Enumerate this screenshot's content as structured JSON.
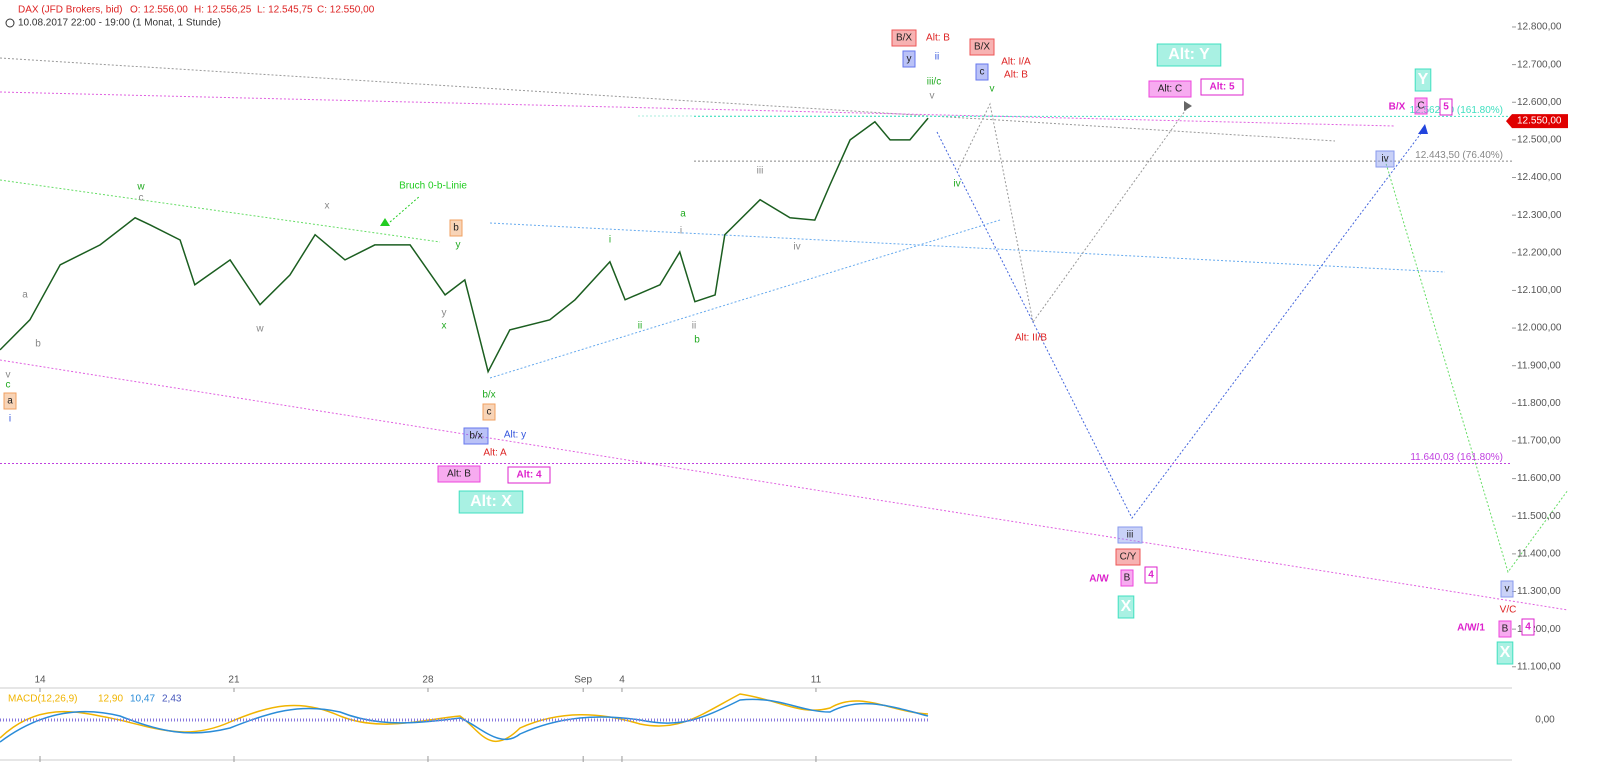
{
  "chart_data": {
    "type": "line",
    "title": "DAX (JFD Brokers, bid)",
    "ohlc": [
      "O: 12.556,00",
      "H: 12.556,25",
      "L: 12.545,75",
      "C: 12.550,00"
    ],
    "subtitle": "10.08.2017 22:00 - 19:00  (1 Monat, 1 Stunde)",
    "x": [
      -1.03,
      -0.26,
      0.52,
      1.55,
      2.45,
      2.84,
      3.61,
      3.99,
      4.9,
      5.67,
      6.44,
      7.09,
      7.86,
      8.63,
      9.54,
      10.44,
      10.95,
      11.08,
      11.55,
      12.11,
      13.14,
      13.79,
      14.69,
      15.08,
      15.98,
      16.49,
      16.88,
      17.4,
      17.65,
      18.56,
      19.33,
      19.97,
      20.36,
      20.88,
      21.52,
      21.91,
      22.42,
      22.89
    ],
    "series": [
      {
        "name": "DAX",
        "color": "#1b5e20",
        "values": [
          11942,
          12022,
          12168,
          12221,
          12293,
          12274,
          12234,
          12115,
          12181,
          12062,
          12141,
          12248,
          12181,
          12221,
          12221,
          12088,
          12128,
          12075,
          11884,
          11995,
          12022,
          12075,
          12176,
          12075,
          12115,
          12202,
          12070,
          12088,
          12248,
          12341,
          12293,
          12287,
          12380,
          12500,
          12548,
          12500,
          12500,
          12558
        ]
      }
    ],
    "xlim": [
      -1.031,
      37.94
    ],
    "xticks": [
      {
        "value": 0,
        "label": "14"
      },
      {
        "value": 5,
        "label": "21"
      },
      {
        "value": 10,
        "label": "28"
      },
      {
        "value": 14,
        "label": "Sep"
      },
      {
        "value": 15,
        "label": "4"
      },
      {
        "value": 20,
        "label": "11"
      }
    ],
    "ylim": [
      11043.6,
      12871.7
    ],
    "yticks": [
      {
        "value": 11100,
        "label": "11.100,00"
      },
      {
        "value": 11200,
        "label": "11.200,00"
      },
      {
        "value": 11300,
        "label": "11.300,00"
      },
      {
        "value": 11400,
        "label": "11.400,00"
      },
      {
        "value": 11500,
        "label": "11.500,00"
      },
      {
        "value": 11600,
        "label": "11.600,00"
      },
      {
        "value": 11700,
        "label": "11.700,00"
      },
      {
        "value": 11800,
        "label": "11.800,00"
      },
      {
        "value": 11900,
        "label": "11.900,00"
      },
      {
        "value": 12000,
        "label": "12.000,00"
      },
      {
        "value": 12100,
        "label": "12.100,00"
      },
      {
        "value": 12200,
        "label": "12.200,00"
      },
      {
        "value": 12300,
        "label": "12.300,00"
      },
      {
        "value": 12400,
        "label": "12.400,00"
      },
      {
        "value": 12500,
        "label": "12.500,00"
      },
      {
        "value": 12600,
        "label": "12.600,00"
      },
      {
        "value": 12700,
        "label": "12.700,00"
      },
      {
        "value": 12800,
        "label": "12.800,00"
      }
    ],
    "last_price": {
      "value": 12550,
      "label": "12.550,00"
    },
    "levels": [
      {
        "value": 12443.5,
        "label": "12.443,50 (76.40%)",
        "color": "#888888"
      },
      {
        "value": 11640.03,
        "label": "11.640,03 (161.80%)",
        "color": "#c040e0"
      },
      {
        "value": 12562.5,
        "label": "12.562,50 (161.80%)",
        "color": "#40e0c0"
      }
    ],
    "macd": {
      "label": "MACD(12,26,9)",
      "values": [
        "12,90",
        "10,47",
        "2,43"
      ],
      "zero": "0,00"
    },
    "annotations": [
      {
        "text": "Bruch 0-b-Linie",
        "color": "#22cc22"
      },
      {
        "text": "w",
        "color": "#22aa22"
      },
      {
        "text": "c",
        "color": "#888888"
      },
      {
        "text": "x",
        "color": "#888888"
      },
      {
        "text": "w",
        "color": "#888888"
      },
      {
        "text": "a",
        "color": "#888888"
      },
      {
        "text": "b",
        "color": "#888888"
      },
      {
        "text": "v",
        "color": "#888888"
      },
      {
        "text": "c",
        "color": "#22aa22"
      },
      {
        "text": "a",
        "color": "#f0a060"
      },
      {
        "text": "i",
        "color": "#3355dd"
      },
      {
        "text": "b",
        "color": "#f0a060"
      },
      {
        "text": "y",
        "color": "#22aa22"
      },
      {
        "text": "y",
        "color": "#888888"
      },
      {
        "text": "x",
        "color": "#22aa22"
      },
      {
        "text": "b/x",
        "color": "#22aa22"
      },
      {
        "text": "c",
        "color": "#f0a060"
      },
      {
        "text": "b/x",
        "color": "#6677ee"
      },
      {
        "text": "Alt: y",
        "color": "#3355dd"
      },
      {
        "text": "Alt: A",
        "color": "#dd2222"
      },
      {
        "text": "Alt: B",
        "color": "#ee44dd"
      },
      {
        "text": "Alt: 4",
        "color": "#dd22cc"
      },
      {
        "text": "Alt: X",
        "color": "#40e0c0"
      },
      {
        "text": "i",
        "color": "#22aa22"
      },
      {
        "text": "ii",
        "color": "#22aa22"
      },
      {
        "text": "a",
        "color": "#22aa22"
      },
      {
        "text": "i",
        "color": "#888888"
      },
      {
        "text": "ii",
        "color": "#888888"
      },
      {
        "text": "b",
        "color": "#22aa22"
      },
      {
        "text": "iii",
        "color": "#888888"
      },
      {
        "text": "iv",
        "color": "#888888"
      },
      {
        "text": "B/X",
        "color": "#ee5555"
      },
      {
        "text": "y",
        "color": "#6677ee"
      },
      {
        "text": "Alt: B",
        "color": "#dd2222"
      },
      {
        "text": "ii",
        "color": "#3355dd"
      },
      {
        "text": "iii/c",
        "color": "#22aa22"
      },
      {
        "text": "v",
        "color": "#888888"
      },
      {
        "text": "iv",
        "color": "#22aa22"
      },
      {
        "text": "B/X",
        "color": "#ee5555"
      },
      {
        "text": "c",
        "color": "#6677ee"
      },
      {
        "text": "Alt: I/A",
        "color": "#dd2222"
      },
      {
        "text": "Alt: B",
        "color": "#dd2222"
      },
      {
        "text": "v",
        "color": "#22aa22"
      },
      {
        "text": "Alt: II/B",
        "color": "#dd2222"
      },
      {
        "text": "Alt: Y",
        "color": "#40e0c0"
      },
      {
        "text": "Alt: C",
        "color": "#ee44dd"
      },
      {
        "text": "Alt: 5",
        "color": "#dd22cc"
      },
      {
        "text": "iii",
        "color": "#8899ee"
      },
      {
        "text": "C/Y",
        "color": "#ee5555"
      },
      {
        "text": "A/W",
        "color": "#dd22cc"
      },
      {
        "text": "B",
        "color": "#ee44dd"
      },
      {
        "text": "4",
        "color": "#dd22cc"
      },
      {
        "text": "X",
        "color": "#40e0c0"
      },
      {
        "text": "iv",
        "color": "#8899ee"
      },
      {
        "text": "Y",
        "color": "#40e0c0"
      },
      {
        "text": "B/X",
        "color": "#dd22cc"
      },
      {
        "text": "C",
        "color": "#ee44dd"
      },
      {
        "text": "5",
        "color": "#dd22cc"
      },
      {
        "text": "v",
        "color": "#8899ee"
      },
      {
        "text": "V/C",
        "color": "#dd2222"
      },
      {
        "text": "A/W/1",
        "color": "#dd22cc"
      },
      {
        "text": "B",
        "color": "#ee44dd"
      },
      {
        "text": "4",
        "color": "#dd22cc"
      },
      {
        "text": "X",
        "color": "#40e0c0"
      }
    ]
  }
}
